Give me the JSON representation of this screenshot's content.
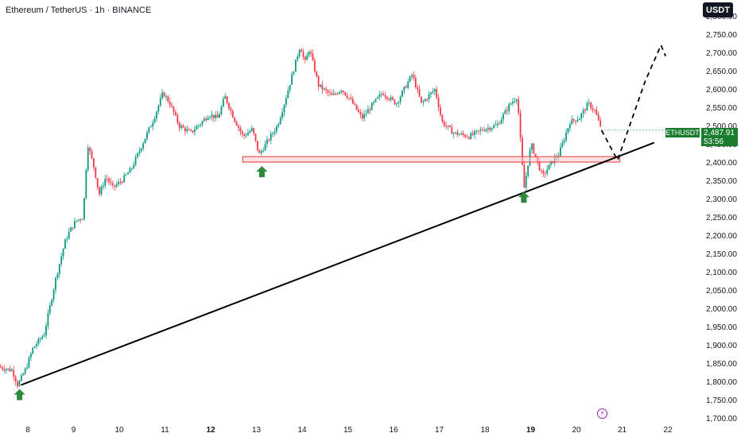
{
  "header": {
    "title": "Ethereum / TetherUS · 1h · BINANCE",
    "quote_button": "USDT"
  },
  "price_label": {
    "symbol": "ETHUSDT",
    "price": "2,487.91",
    "countdown": "53:56"
  },
  "colors": {
    "up": "#089981",
    "down": "#f23645",
    "arrow": "#2e8b3c",
    "zone_fill": "#f8c9cc",
    "zone_stroke": "#e53935",
    "trendline": "#000000"
  },
  "icons": {
    "flash": "lightning-bolt-icon"
  },
  "chart_data": {
    "type": "candlestick",
    "interval": "1h",
    "y_axis": {
      "ticks": [
        1700,
        1750,
        1800,
        1850,
        1900,
        1950,
        2000,
        2050,
        2100,
        2150,
        2200,
        2250,
        2300,
        2350,
        2400,
        2450,
        2500,
        2550,
        2600,
        2650,
        2700,
        2750,
        2800
      ],
      "tick_labels": [
        "1,700.00",
        "1,750.00",
        "1,800.00",
        "1,850.00",
        "1,900.00",
        "1,950.00",
        "2,000.00",
        "2,050.00",
        "2,100.00",
        "2,150.00",
        "2,200.00",
        "2,250.00",
        "2,300.00",
        "2,350.00",
        "2,400.00",
        "2,450.00",
        "2,500.00",
        "2,550.00",
        "2,600.00",
        "2,650.00",
        "2,700.00",
        "2,750.00",
        "2,800.00"
      ],
      "range": [
        1700,
        2800
      ]
    },
    "x_axis": {
      "ticks": [
        8,
        9,
        10,
        11,
        12,
        13,
        14,
        15,
        16,
        17,
        18,
        19,
        20,
        21,
        22
      ],
      "tick_labels": [
        "8",
        "9",
        "10",
        "11",
        "12",
        "13",
        "14",
        "15",
        "16",
        "17",
        "18",
        "19",
        "20",
        "21",
        "22"
      ],
      "bold_ticks": [
        "12",
        "19"
      ],
      "range": [
        7.4,
        22.2
      ]
    },
    "price_path": [
      [
        7.4,
        1840
      ],
      [
        7.7,
        1830
      ],
      [
        7.82,
        1790
      ],
      [
        8.0,
        1835
      ],
      [
        8.15,
        1890
      ],
      [
        8.4,
        1930
      ],
      [
        8.65,
        2080
      ],
      [
        8.85,
        2180
      ],
      [
        8.95,
        2210
      ],
      [
        9.1,
        2240
      ],
      [
        9.25,
        2250
      ],
      [
        9.35,
        2450
      ],
      [
        9.5,
        2380
      ],
      [
        9.6,
        2310
      ],
      [
        9.75,
        2360
      ],
      [
        9.9,
        2330
      ],
      [
        10.1,
        2350
      ],
      [
        10.3,
        2380
      ],
      [
        10.55,
        2450
      ],
      [
        10.8,
        2520
      ],
      [
        11.0,
        2590
      ],
      [
        11.15,
        2560
      ],
      [
        11.35,
        2500
      ],
      [
        11.6,
        2480
      ],
      [
        11.85,
        2510
      ],
      [
        12.0,
        2530
      ],
      [
        12.2,
        2520
      ],
      [
        12.35,
        2580
      ],
      [
        12.55,
        2520
      ],
      [
        12.75,
        2470
      ],
      [
        12.95,
        2490
      ],
      [
        13.1,
        2420
      ],
      [
        13.25,
        2450
      ],
      [
        13.5,
        2500
      ],
      [
        13.65,
        2560
      ],
      [
        13.85,
        2650
      ],
      [
        14.0,
        2720
      ],
      [
        14.1,
        2670
      ],
      [
        14.2,
        2710
      ],
      [
        14.4,
        2610
      ],
      [
        14.7,
        2580
      ],
      [
        14.9,
        2600
      ],
      [
        15.1,
        2570
      ],
      [
        15.35,
        2520
      ],
      [
        15.6,
        2560
      ],
      [
        15.8,
        2590
      ],
      [
        16.1,
        2560
      ],
      [
        16.45,
        2640
      ],
      [
        16.65,
        2560
      ],
      [
        16.95,
        2600
      ],
      [
        17.1,
        2510
      ],
      [
        17.35,
        2480
      ],
      [
        17.7,
        2470
      ],
      [
        18.0,
        2490
      ],
      [
        18.3,
        2500
      ],
      [
        18.5,
        2540
      ],
      [
        18.6,
        2560
      ],
      [
        18.75,
        2580
      ],
      [
        18.85,
        2400
      ],
      [
        18.9,
        2330
      ],
      [
        19.05,
        2450
      ],
      [
        19.3,
        2360
      ],
      [
        19.5,
        2400
      ],
      [
        19.65,
        2420
      ],
      [
        19.9,
        2510
      ],
      [
        20.1,
        2520
      ],
      [
        20.3,
        2560
      ],
      [
        20.45,
        2540
      ],
      [
        20.55,
        2500
      ]
    ],
    "support_zone": {
      "x_start": 12.7,
      "x_end": 20.95,
      "y_low": 2400,
      "y_high": 2415
    },
    "trendline": {
      "start": [
        7.85,
        1790
      ],
      "end": [
        21.7,
        2453
      ]
    },
    "projection": [
      [
        20.55,
        2487
      ],
      [
        20.9,
        2405
      ],
      [
        21.5,
        2620
      ],
      [
        21.85,
        2720
      ],
      [
        21.95,
        2690
      ]
    ],
    "markers": [
      {
        "name": "arrow-up-low",
        "x": 7.82,
        "y": 1790
      },
      {
        "name": "arrow-up-retest",
        "x": 13.12,
        "y": 2400
      },
      {
        "name": "arrow-up-wick",
        "x": 18.85,
        "y": 2330
      }
    ],
    "last_price": 2487.91
  }
}
